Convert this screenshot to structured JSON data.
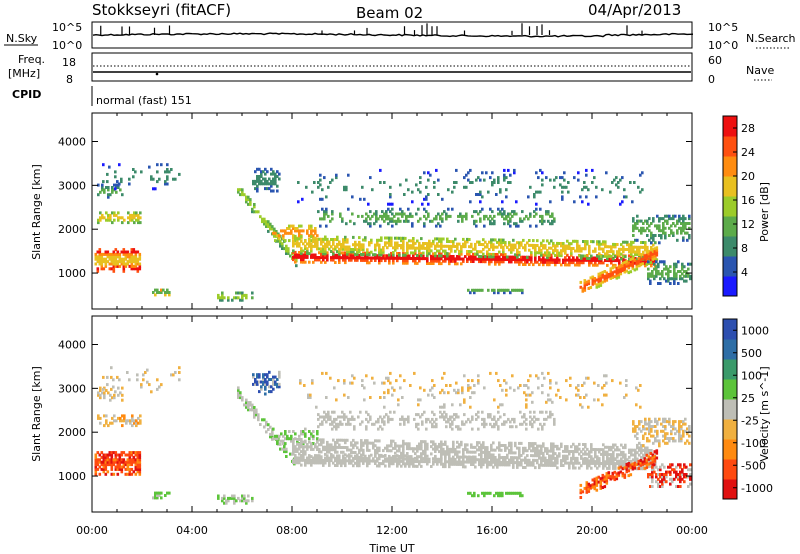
{
  "header": {
    "station": "Stokkseyri (fitACF)",
    "beam": "Beam 02",
    "date": "04/Apr/2013"
  },
  "panels": {
    "nsky_label": "N.Sky",
    "nsearch_label": "N.Search",
    "nsky_ticks": [
      "10^5",
      "10^0"
    ],
    "nsearch_ticks": [
      "10^5",
      "10^0"
    ],
    "freq_label_1": "Freq.",
    "freq_label_2": "[MHz]",
    "freq_ticks": [
      "18",
      "8"
    ],
    "nave_label": "Nave",
    "nave_ticks": [
      "60",
      "0"
    ],
    "cpid_label": "CPID",
    "cpid_value": "normal (fast) 151"
  },
  "colors": {
    "power_scale": [
      "#1a1aff",
      "#2a55b0",
      "#3c8a6a",
      "#5cab4a",
      "#9ccc2a",
      "#e8c020",
      "#ff8c10",
      "#ff5010",
      "#ee1010"
    ],
    "velocity_scale": [
      "#2d4fb0",
      "#2e6ea6",
      "#3a9a6a",
      "#5cc43a",
      "#bebeb6",
      "#f0b040",
      "#ff8a10",
      "#ff4a10",
      "#e01010"
    ]
  },
  "chart_data": [
    {
      "type": "heatmap",
      "quantity": "Power",
      "xlabel": "",
      "ylabel": "Slant Range [km]",
      "x_ticks": [
        "00:00",
        "04:00",
        "08:00",
        "12:00",
        "16:00",
        "20:00",
        "00:00"
      ],
      "y_ticks": [
        "1000",
        "2000",
        "3000",
        "4000"
      ],
      "xlim_hours": [
        0,
        24
      ],
      "ylim_km": [
        180,
        4650
      ],
      "colorbar": {
        "label": "Power [dB]",
        "ticks": [
          "4",
          "8",
          "12",
          "16",
          "20",
          "24",
          "28"
        ],
        "range": [
          0,
          30
        ]
      }
    },
    {
      "type": "heatmap",
      "quantity": "Velocity",
      "xlabel": "Time UT",
      "ylabel": "Slant Range [km]",
      "x_ticks": [
        "00:00",
        "04:00",
        "08:00",
        "12:00",
        "16:00",
        "20:00",
        "00:00"
      ],
      "y_ticks": [
        "1000",
        "2000",
        "3000",
        "4000"
      ],
      "xlim_hours": [
        0,
        24
      ],
      "ylim_km": [
        180,
        4650
      ],
      "colorbar": {
        "label": "Velocity [m s^-1]",
        "ticks": [
          "1000",
          "500",
          "100",
          "25",
          "-25",
          "-100",
          "-500",
          "-1000"
        ]
      }
    }
  ]
}
